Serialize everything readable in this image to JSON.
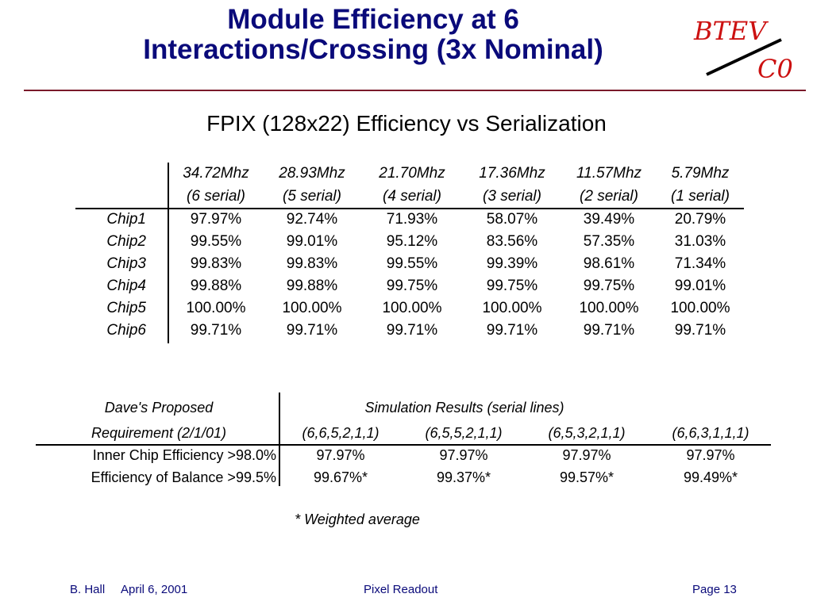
{
  "slide": {
    "title_line1": "Module Efficiency at 6",
    "title_line2": "Interactions/Crossing (3x Nominal)",
    "logo": {
      "text_top": "BTEV",
      "text_bottom": "C0",
      "color": "#cc1111"
    },
    "subtitle": "FPIX (128x22) Efficiency vs Serialization"
  },
  "table1": {
    "headers": [
      {
        "freq": "34.72Mhz",
        "serial": "(6 serial)"
      },
      {
        "freq": "28.93Mhz",
        "serial": "(5 serial)"
      },
      {
        "freq": "21.70Mhz",
        "serial": "(4 serial)"
      },
      {
        "freq": "17.36Mhz",
        "serial": "(3 serial)"
      },
      {
        "freq": "11.57Mhz",
        "serial": "(2 serial)"
      },
      {
        "freq": "5.79Mhz",
        "serial": "(1 serial)"
      }
    ],
    "rows": [
      {
        "label": "Chip1",
        "values": [
          "97.97%",
          "92.74%",
          "71.93%",
          "58.07%",
          "39.49%",
          "20.79%"
        ]
      },
      {
        "label": "Chip2",
        "values": [
          "99.55%",
          "99.01%",
          "95.12%",
          "83.56%",
          "57.35%",
          "31.03%"
        ]
      },
      {
        "label": "Chip3",
        "values": [
          "99.83%",
          "99.83%",
          "99.55%",
          "99.39%",
          "98.61%",
          "71.34%"
        ]
      },
      {
        "label": "Chip4",
        "values": [
          "99.88%",
          "99.88%",
          "99.75%",
          "99.75%",
          "99.75%",
          "99.01%"
        ]
      },
      {
        "label": "Chip5",
        "values": [
          "100.00%",
          "100.00%",
          "100.00%",
          "100.00%",
          "100.00%",
          "100.00%"
        ]
      },
      {
        "label": "Chip6",
        "values": [
          "99.71%",
          "99.71%",
          "99.71%",
          "99.71%",
          "99.71%",
          "99.71%"
        ]
      }
    ]
  },
  "table2": {
    "left_header_line1": "Dave's Proposed",
    "left_header_line2": "Requirement (2/1/01)",
    "right_header": "Simulation Results (serial lines)",
    "configs": [
      "(6,6,5,2,1,1)",
      "(6,5,5,2,1,1)",
      "(6,5,3,2,1,1)",
      "(6,6,3,1,1,1)"
    ],
    "rows": [
      {
        "label": "Inner Chip Efficiency >98.0%",
        "values": [
          "97.97%",
          "97.97%",
          "97.97%",
          "97.97%"
        ]
      },
      {
        "label": "Efficiency of Balance >99.5%",
        "values": [
          "99.67%*",
          "99.37%*",
          "99.57%*",
          "99.49%*"
        ]
      }
    ],
    "footnote": "* Weighted average"
  },
  "footer": {
    "author": "B. Hall",
    "date": "April 6, 2001",
    "center": "Pixel Readout",
    "page": "Page 13"
  }
}
